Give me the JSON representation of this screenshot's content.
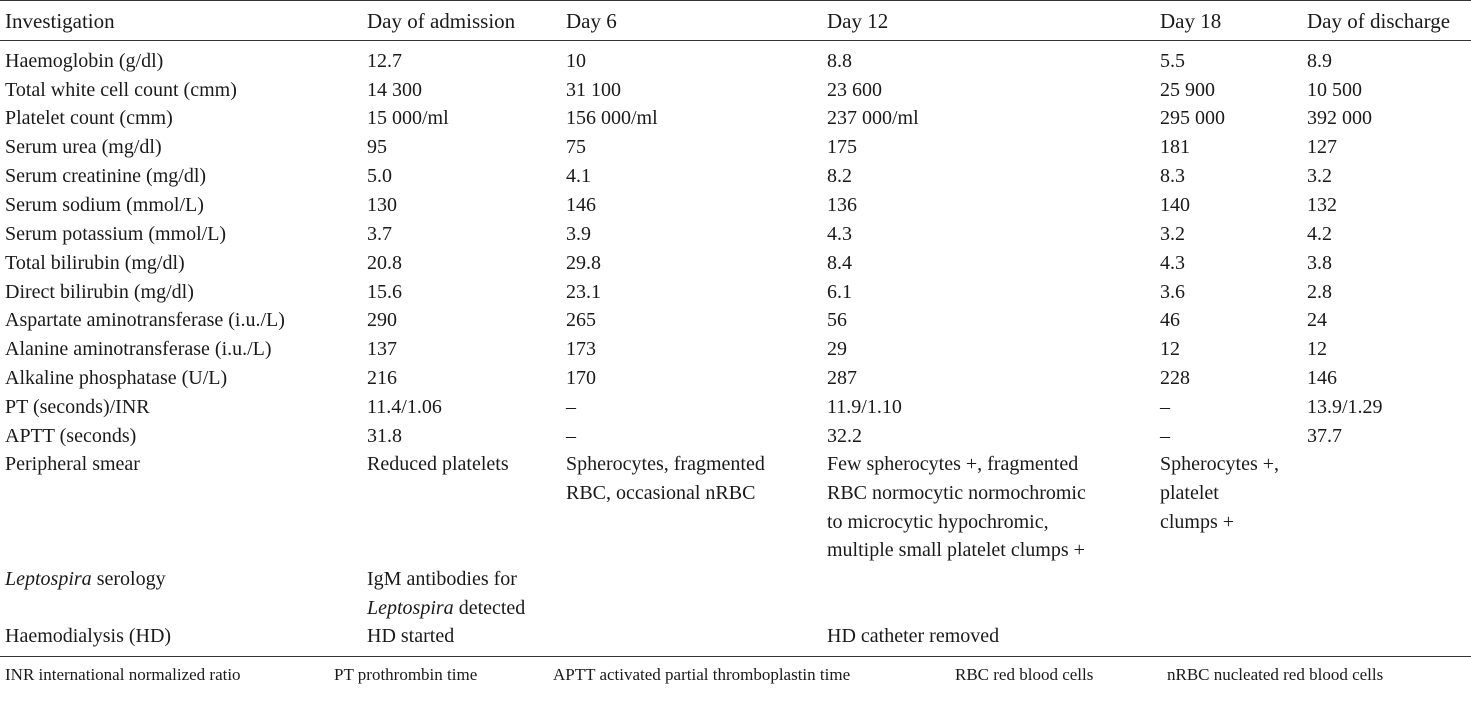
{
  "header": [
    "Investigation",
    "Day of admission",
    "Day 6",
    "Day 12",
    "Day 18",
    "Day of discharge"
  ],
  "rows": [
    {
      "label": "Haemoglobin (g/dl)",
      "cells": [
        [
          "12.7"
        ],
        [
          "10"
        ],
        [
          "8.8"
        ],
        [
          "5.5"
        ],
        [
          "8.9"
        ]
      ]
    },
    {
      "label": "Total white cell count (cmm)",
      "cells": [
        [
          "14 300"
        ],
        [
          "31 100"
        ],
        [
          "23 600"
        ],
        [
          "25 900"
        ],
        [
          "10 500"
        ]
      ]
    },
    {
      "label": "Platelet count (cmm)",
      "cells": [
        [
          "15 000/ml"
        ],
        [
          "156 000/ml"
        ],
        [
          "237 000/ml"
        ],
        [
          "295 000"
        ],
        [
          "392 000"
        ]
      ]
    },
    {
      "label": "Serum urea (mg/dl)",
      "cells": [
        [
          "95"
        ],
        [
          "75"
        ],
        [
          "175"
        ],
        [
          "181"
        ],
        [
          "127"
        ]
      ]
    },
    {
      "label": "Serum creatinine (mg/dl)",
      "cells": [
        [
          "5.0"
        ],
        [
          "4.1"
        ],
        [
          "8.2"
        ],
        [
          "8.3"
        ],
        [
          "3.2"
        ]
      ]
    },
    {
      "label": "Serum sodium (mmol/L)",
      "cells": [
        [
          "130"
        ],
        [
          "146"
        ],
        [
          "136"
        ],
        [
          "140"
        ],
        [
          "132"
        ]
      ]
    },
    {
      "label": "Serum potassium (mmol/L)",
      "cells": [
        [
          "3.7"
        ],
        [
          "3.9"
        ],
        [
          "4.3"
        ],
        [
          "3.2"
        ],
        [
          "4.2"
        ]
      ]
    },
    {
      "label": "Total bilirubin (mg/dl)",
      "cells": [
        [
          "20.8"
        ],
        [
          "29.8"
        ],
        [
          "8.4"
        ],
        [
          "4.3"
        ],
        [
          "3.8"
        ]
      ]
    },
    {
      "label": "Direct bilirubin (mg/dl)",
      "cells": [
        [
          "15.6"
        ],
        [
          "23.1"
        ],
        [
          "6.1"
        ],
        [
          "3.6"
        ],
        [
          "2.8"
        ]
      ]
    },
    {
      "label": "Aspartate aminotransferase (i.u./L)",
      "cells": [
        [
          "290"
        ],
        [
          "265"
        ],
        [
          "56"
        ],
        [
          "46"
        ],
        [
          "24"
        ]
      ]
    },
    {
      "label": "Alanine aminotransferase (i.u./L)",
      "cells": [
        [
          "137"
        ],
        [
          "173"
        ],
        [
          "29"
        ],
        [
          "12"
        ],
        [
          "12"
        ]
      ]
    },
    {
      "label": "Alkaline phosphatase (U/L)",
      "cells": [
        [
          "216"
        ],
        [
          "170"
        ],
        [
          "287"
        ],
        [
          "228"
        ],
        [
          "146"
        ]
      ]
    },
    {
      "label": "PT (seconds)/INR",
      "cells": [
        [
          "11.4/1.06"
        ],
        [
          "–"
        ],
        [
          "11.9/1.10"
        ],
        [
          "–"
        ],
        [
          "13.9/1.29"
        ]
      ]
    },
    {
      "label": "APTT (seconds)",
      "cells": [
        [
          "31.8"
        ],
        [
          "–"
        ],
        [
          "32.2"
        ],
        [
          "–"
        ],
        [
          "37.7"
        ]
      ]
    },
    {
      "label": "Peripheral smear",
      "cells": [
        [
          "Reduced platelets"
        ],
        [
          "Spherocytes, fragmented",
          "RBC, occasional nRBC"
        ],
        [
          "Few spherocytes +, fragmented",
          "RBC normocytic normochromic",
          "to microcytic hypochromic,",
          "multiple small platelet clumps +"
        ],
        [
          "Spherocytes +,",
          "platelet",
          "clumps +"
        ],
        []
      ]
    },
    {
      "label_parts": [
        "Leptospira",
        " serology"
      ],
      "cells": [
        [
          "IgM antibodies for"
        ],
        [],
        [],
        [],
        []
      ],
      "extra_line_italic": "Leptospira",
      "extra_line_rest": " detected"
    },
    {
      "label": "Haemodialysis (HD)",
      "cells": [
        [
          "HD started"
        ],
        [],
        [
          "HD catheter removed"
        ],
        [],
        []
      ]
    }
  ],
  "footnotes": [
    "INR international normalized ratio",
    "PT prothrombin time",
    "APTT activated partial thromboplastin time",
    "RBC red blood cells",
    "nRBC nucleated red blood cells"
  ]
}
